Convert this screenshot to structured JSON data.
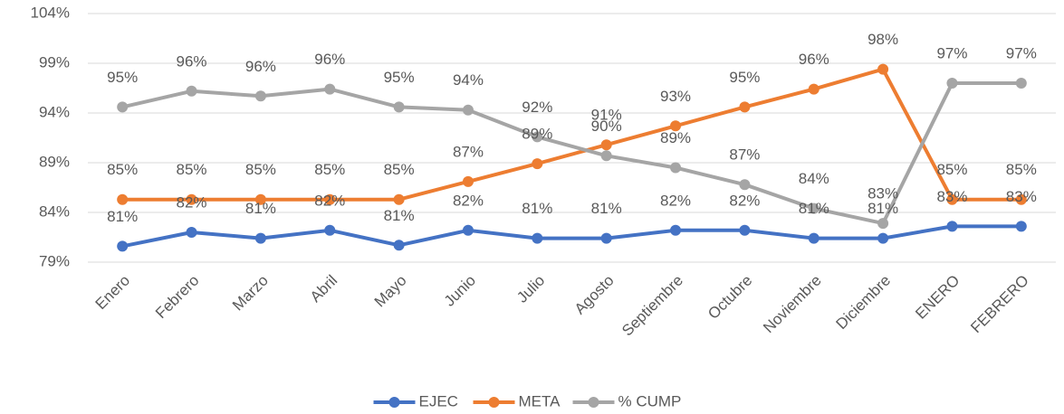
{
  "chart_data": {
    "type": "line",
    "categories": [
      "Enero",
      "Febrero",
      "Marzo",
      "Abril",
      "Mayo",
      "Junio",
      "Julio",
      "Agosto",
      "Septiembre",
      "Octubre",
      "Noviembre",
      "Diciembre",
      "ENERO",
      "FEBRERO"
    ],
    "series": [
      {
        "name": "EJEC",
        "color": "#4472c4",
        "values": [
          80.6,
          82.0,
          81.4,
          82.2,
          80.7,
          82.2,
          81.4,
          81.4,
          82.2,
          82.2,
          81.4,
          81.4,
          82.6,
          82.6
        ],
        "value_labels": [
          "81%",
          "82%",
          "81%",
          "82%",
          "81%",
          "82%",
          "81%",
          "81%",
          "82%",
          "82%",
          "81%",
          "81%",
          "83%",
          "83%"
        ]
      },
      {
        "name": "META",
        "color": "#ed7d31",
        "values": [
          85.3,
          85.3,
          85.3,
          85.3,
          85.3,
          87.1,
          88.9,
          90.8,
          92.7,
          94.6,
          96.4,
          98.4,
          85.3,
          85.3
        ],
        "value_labels": [
          "85%",
          "85%",
          "85%",
          "85%",
          "85%",
          "87%",
          "89%",
          "91%",
          "93%",
          "95%",
          "96%",
          "98%",
          "85%",
          "85%"
        ]
      },
      {
        "name": "% CUMP",
        "color": "#a5a5a5",
        "values": [
          94.6,
          96.2,
          95.7,
          96.4,
          94.6,
          94.3,
          91.6,
          89.7,
          88.5,
          86.8,
          84.4,
          82.9,
          97.0,
          97.0
        ],
        "value_labels": [
          "95%",
          "96%",
          "96%",
          "96%",
          "95%",
          "94%",
          "92%",
          "90%",
          "89%",
          "87%",
          "84%",
          "83%",
          "97%",
          "97%"
        ]
      }
    ],
    "ylim": [
      79,
      104
    ],
    "yticks": [
      {
        "value": 79,
        "label": "79%"
      },
      {
        "value": 84,
        "label": "84%"
      },
      {
        "value": 89,
        "label": "89%"
      },
      {
        "value": 94,
        "label": "94%"
      },
      {
        "value": 99,
        "label": "99%"
      },
      {
        "value": 104,
        "label": "104%"
      }
    ],
    "grid": true,
    "legend": "bottom"
  }
}
